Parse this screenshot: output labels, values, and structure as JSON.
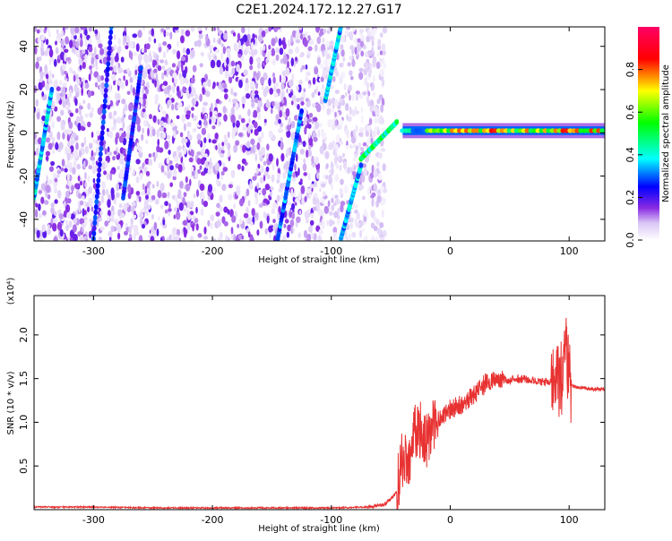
{
  "title": "C2E1.2024.172.12.27.G17",
  "chart_data": [
    {
      "type": "heatmap",
      "title": "C2E1.2024.172.12.27.G17",
      "xlabel": "Height of straight line (km)",
      "ylabel": "Frequency (Hz)",
      "xlim": [
        -350,
        130
      ],
      "ylim": [
        -50,
        49
      ],
      "x_ticks": [
        -300,
        -200,
        -100,
        0,
        100
      ],
      "y_ticks": [
        -40,
        -20,
        0,
        20,
        40
      ],
      "x_tick_labels": [
        "-300",
        "-200",
        "-100",
        "0",
        "100"
      ],
      "y_tick_labels": [
        "-40",
        "-20",
        "0",
        "20",
        "40"
      ],
      "colorbar": {
        "label": "Normalized spectral amplitude",
        "range": [
          0,
          1
        ],
        "ticks": [
          0.0,
          0.2,
          0.4,
          0.6,
          0.8
        ],
        "tick_labels": [
          "0.0",
          "0.2",
          "0.4",
          "0.6",
          "0.8"
        ],
        "colormap": "white-purple-blue-cyan-green-yellow-red-magenta"
      },
      "features": {
        "noise_region_x": [
          -350,
          -55
        ],
        "steady_tone": {
          "x": [
            -40,
            130
          ],
          "freq": 1,
          "amplitude": 0.85
        },
        "drifting_lines": [
          {
            "x": [
              -350,
              -335
            ],
            "y": [
              -30,
              20
            ],
            "amplitude": 0.35
          },
          {
            "x": [
              -300,
              -285
            ],
            "y": [
              -49,
              49
            ],
            "amplitude": 0.25
          },
          {
            "x": [
              -275,
              -260
            ],
            "y": [
              -30,
              30
            ],
            "amplitude": 0.25
          },
          {
            "x": [
              -145,
              -125
            ],
            "y": [
              -49,
              10
            ],
            "amplitude": 0.3
          },
          {
            "x": [
              -105,
              -92
            ],
            "y": [
              15,
              49
            ],
            "amplitude": 0.35
          },
          {
            "x": [
              -92,
              -75
            ],
            "y": [
              -49,
              -15
            ],
            "amplitude": 0.35
          },
          {
            "x": [
              -75,
              -45
            ],
            "y": [
              -12,
              5
            ],
            "amplitude": 0.45
          }
        ]
      }
    },
    {
      "type": "line",
      "xlabel": "Height of straight line (km)",
      "ylabel": "SNR (10 * v/v)",
      "y_multiplier": "(x10⁴)",
      "xlim": [
        -350,
        130
      ],
      "ylim": [
        0,
        2.45
      ],
      "x_ticks": [
        -300,
        -200,
        -100,
        0,
        100
      ],
      "y_ticks": [
        0.5,
        1.0,
        1.5,
        2.0
      ],
      "x_tick_labels": [
        "-300",
        "-200",
        "-100",
        "0",
        "100"
      ],
      "y_tick_labels": [
        "0.5",
        "1.0",
        "1.5",
        "2.0"
      ],
      "color": "#e83232",
      "x": [
        -350,
        -300,
        -250,
        -200,
        -150,
        -100,
        -70,
        -55,
        -45,
        -40,
        -35,
        -30,
        -25,
        -20,
        -15,
        -10,
        -5,
        0,
        10,
        20,
        30,
        40,
        50,
        60,
        70,
        80,
        85,
        90,
        95,
        98,
        100,
        105,
        110,
        120,
        130
      ],
      "values": [
        0.03,
        0.03,
        0.02,
        0.02,
        0.02,
        0.02,
        0.03,
        0.06,
        0.2,
        0.6,
        0.5,
        0.85,
        0.9,
        0.75,
        0.95,
        1.05,
        1.1,
        1.15,
        1.2,
        1.3,
        1.45,
        1.5,
        1.48,
        1.5,
        1.48,
        1.46,
        1.45,
        1.45,
        1.5,
        1.8,
        1.45,
        1.4,
        1.4,
        1.38,
        1.38
      ]
    }
  ]
}
